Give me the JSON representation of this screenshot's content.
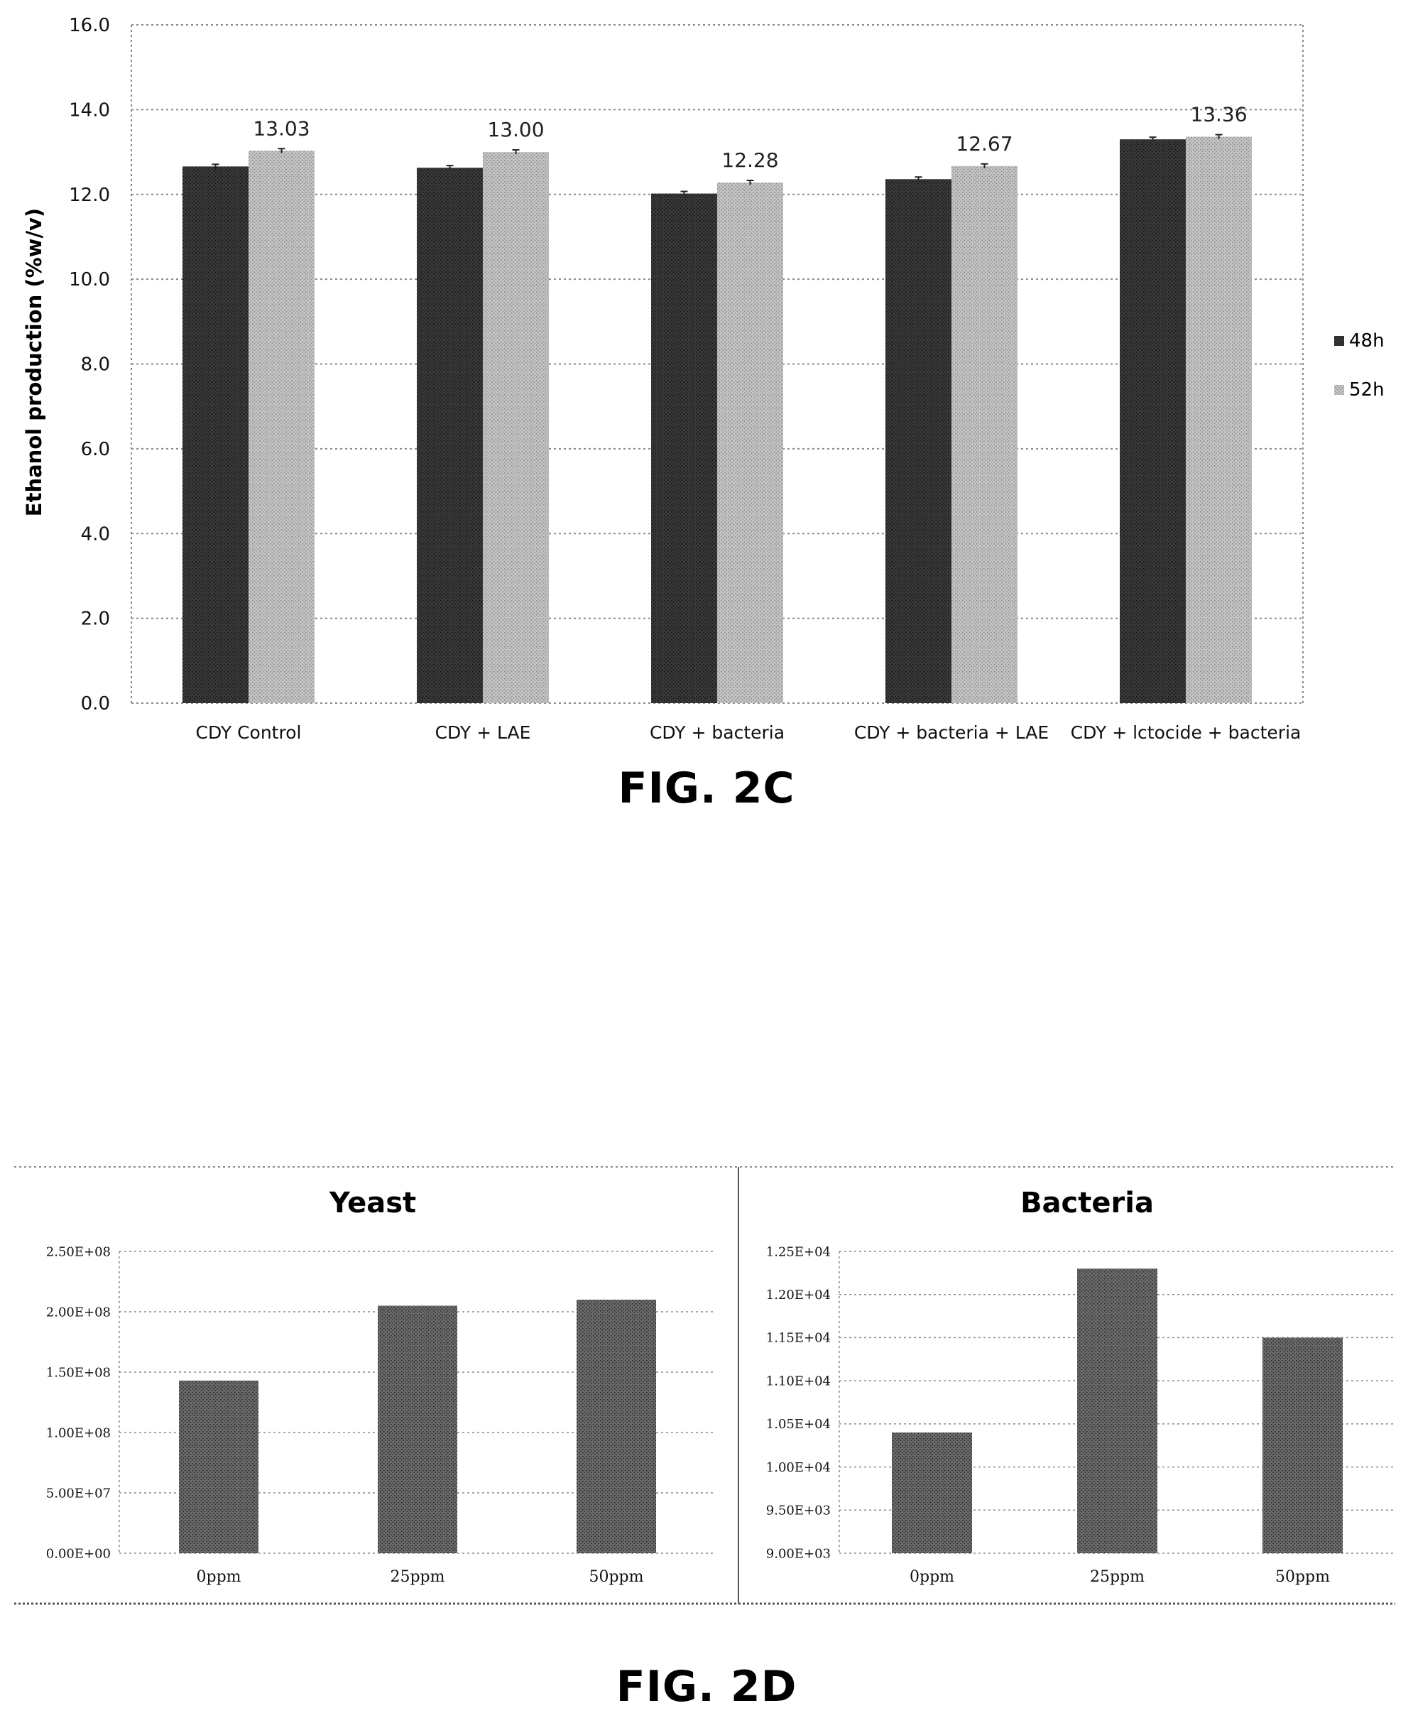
{
  "figures": {
    "top_label": "FIG. 2C",
    "bottom_label": "FIG. 2D"
  },
  "colors": {
    "series_48h": "#333333",
    "series_52h": "#b5b5b5",
    "bar_2d": "#555555",
    "grid": "#8a8a8a"
  },
  "chart_data": [
    {
      "type": "bar",
      "title": "",
      "xlabel": "",
      "ylabel": "Ethanol production (%w/v)",
      "categories": [
        "CDY Control",
        "CDY + LAE",
        "CDY + bacteria",
        "CDY + bacteria + LAE",
        "CDY + lctocide + bacteria"
      ],
      "series": [
        {
          "name": "48h",
          "values": [
            12.66,
            12.63,
            12.02,
            12.36,
            13.3
          ]
        },
        {
          "name": "52h",
          "values": [
            13.03,
            13.0,
            12.28,
            12.67,
            13.36
          ]
        }
      ],
      "data_labels": [
        "13.03",
        "13.00",
        "12.28",
        "12.67",
        "13.36"
      ],
      "ylim": [
        0,
        16
      ],
      "yticks": [
        "0.0",
        "2.0",
        "4.0",
        "6.0",
        "8.0",
        "10.0",
        "12.0",
        "14.0",
        "16.0"
      ],
      "grid": true,
      "legend_placement": "right"
    },
    {
      "type": "bar",
      "title": "Yeast",
      "xlabel": "",
      "ylabel": "",
      "categories": [
        "0ppm",
        "25ppm",
        "50ppm"
      ],
      "values": [
        143000000,
        205000000,
        210000000
      ],
      "ylim": [
        0,
        250000000
      ],
      "yticks": [
        "0.00E+00",
        "5.00E+07",
        "1.00E+08",
        "1.50E+08",
        "2.00E+08",
        "2.50E+08"
      ],
      "grid": true
    },
    {
      "type": "bar",
      "title": "Bacteria",
      "xlabel": "",
      "ylabel": "",
      "categories": [
        "0ppm",
        "25ppm",
        "50ppm"
      ],
      "values": [
        10400,
        12300,
        11500
      ],
      "ylim": [
        9000,
        12500
      ],
      "yticks": [
        "9.00E+03",
        "9.50E+03",
        "1.00E+04",
        "1.05E+04",
        "1.10E+04",
        "1.15E+04",
        "1.20E+04",
        "1.25E+04"
      ],
      "grid": true
    }
  ]
}
